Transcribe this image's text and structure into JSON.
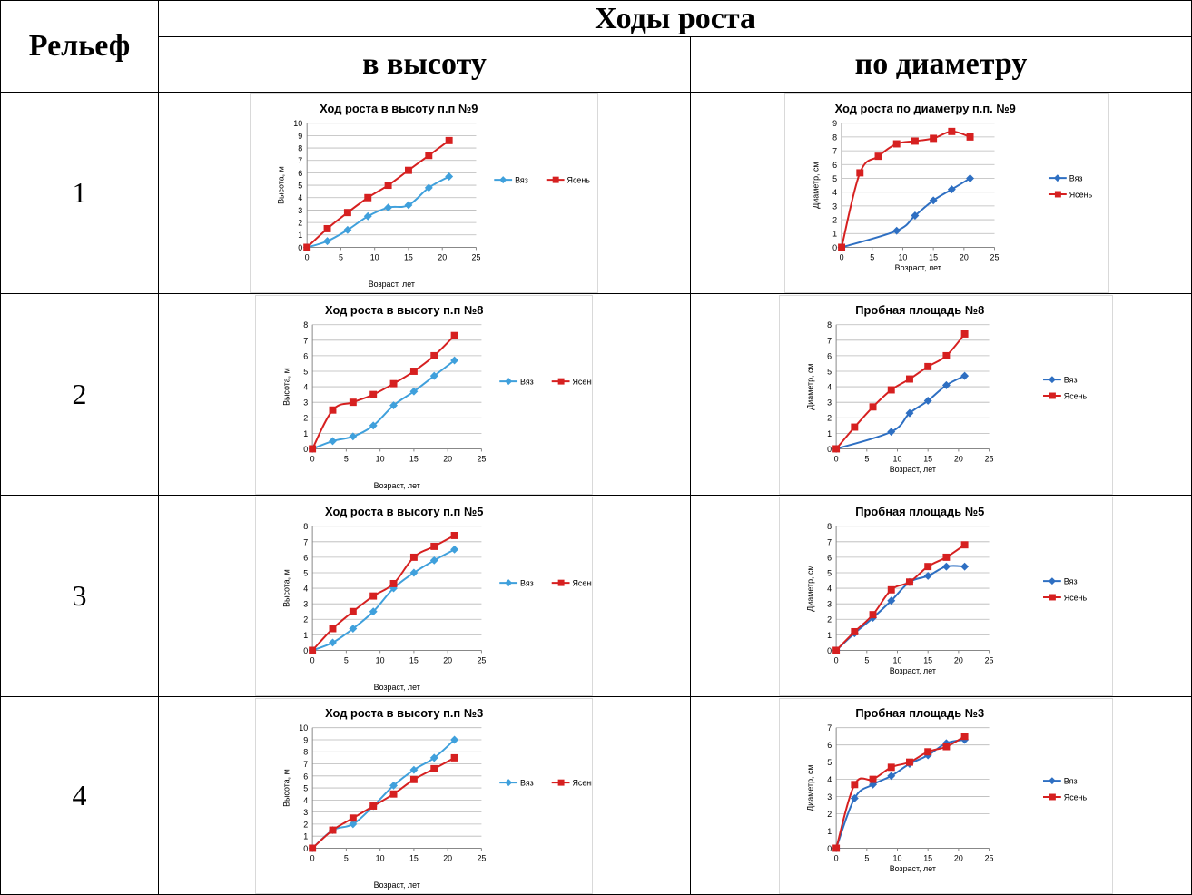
{
  "table": {
    "col1_header": "Рельеф",
    "group_header": "Ходы роста",
    "sub_height": "в высоту",
    "sub_diameter": "по диаметру",
    "rows": [
      "1",
      "2",
      "3",
      "4"
    ]
  },
  "colors": {
    "vyaz": "#2E6FC2",
    "vyaz_light": "#3FA0DC",
    "yasen": "#D62020"
  },
  "chart_data": [
    {
      "type": "line",
      "title": "Ход роста в высоту п.п №9",
      "xlabel": "Возраст, лет",
      "ylabel": "Высота, м",
      "xlim": [
        0,
        25
      ],
      "xticks": [
        0,
        5,
        10,
        15,
        20,
        25
      ],
      "ylim": [
        0,
        10
      ],
      "yticks": [
        0,
        1,
        2,
        3,
        4,
        5,
        6,
        7,
        8,
        9,
        10
      ],
      "grid": true,
      "legend": "right",
      "series": [
        {
          "name": "Вяз",
          "marker": "diamond",
          "x": [
            0,
            3,
            6,
            9,
            12,
            15,
            18,
            21
          ],
          "y": [
            0,
            0.5,
            1.4,
            2.5,
            3.2,
            3.4,
            4.8,
            5.7
          ]
        },
        {
          "name": "Ясень",
          "marker": "square",
          "x": [
            0,
            3,
            6,
            9,
            12,
            15,
            18,
            21
          ],
          "y": [
            0,
            1.5,
            2.8,
            4.0,
            5.0,
            6.2,
            7.4,
            8.6
          ]
        }
      ]
    },
    {
      "type": "line",
      "title": "Ход роста по диаметру п.п. №9",
      "xlabel": "Возраст, лет",
      "ylabel": "Диаметр, см",
      "xlim": [
        0,
        25
      ],
      "xticks": [
        0,
        5,
        10,
        15,
        20,
        25
      ],
      "ylim": [
        0,
        9
      ],
      "yticks": [
        0,
        1,
        2,
        3,
        4,
        5,
        6,
        7,
        8,
        9
      ],
      "grid": true,
      "legend": "right",
      "series": [
        {
          "name": "Вяз",
          "marker": "diamond",
          "x": [
            0,
            9,
            12,
            15,
            18,
            21
          ],
          "y": [
            0,
            1.2,
            2.3,
            3.4,
            4.2,
            5.0
          ]
        },
        {
          "name": "Ясень",
          "marker": "square",
          "x": [
            0,
            3,
            6,
            9,
            12,
            15,
            18,
            21
          ],
          "y": [
            0,
            5.4,
            6.6,
            7.5,
            7.7,
            7.9,
            8.4,
            8.0
          ]
        }
      ]
    },
    {
      "type": "line",
      "title": "Ход роста в высоту п.п №8",
      "xlabel": "Возраст, лет",
      "ylabel": "Высота, м",
      "xlim": [
        0,
        25
      ],
      "xticks": [
        0,
        5,
        10,
        15,
        20,
        25
      ],
      "ylim": [
        0,
        8
      ],
      "yticks": [
        0,
        1,
        2,
        3,
        4,
        5,
        6,
        7,
        8
      ],
      "grid": true,
      "legend": "right",
      "series": [
        {
          "name": "Вяз",
          "marker": "diamond",
          "x": [
            0,
            3,
            6,
            9,
            12,
            15,
            18,
            21
          ],
          "y": [
            0,
            0.5,
            0.8,
            1.5,
            2.8,
            3.7,
            4.7,
            5.7
          ]
        },
        {
          "name": "Ясень",
          "marker": "square",
          "x": [
            0,
            3,
            6,
            9,
            12,
            15,
            18,
            21
          ],
          "y": [
            0,
            2.5,
            3.0,
            3.5,
            4.2,
            5.0,
            6.0,
            7.3
          ]
        }
      ]
    },
    {
      "type": "line",
      "title": "Пробная площадь №8",
      "xlabel": "Возраст, лет",
      "ylabel": "Диаметр, см",
      "xlim": [
        0,
        25
      ],
      "xticks": [
        0,
        5,
        10,
        15,
        20,
        25
      ],
      "ylim": [
        0,
        8
      ],
      "yticks": [
        0,
        1,
        2,
        3,
        4,
        5,
        6,
        7,
        8
      ],
      "grid": true,
      "legend": "right",
      "series": [
        {
          "name": "Вяз",
          "marker": "diamond",
          "x": [
            0,
            9,
            12,
            15,
            18,
            21
          ],
          "y": [
            0,
            1.1,
            2.3,
            3.1,
            4.1,
            4.7
          ]
        },
        {
          "name": "Ясень",
          "marker": "square",
          "x": [
            0,
            3,
            6,
            9,
            12,
            15,
            18,
            21
          ],
          "y": [
            0,
            1.4,
            2.7,
            3.8,
            4.5,
            5.3,
            6.0,
            7.4
          ]
        }
      ]
    },
    {
      "type": "line",
      "title": "Ход роста в высоту п.п №5",
      "xlabel": "Возраст, лет",
      "ylabel": "Высота, м",
      "xlim": [
        0,
        25
      ],
      "xticks": [
        0,
        5,
        10,
        15,
        20,
        25
      ],
      "ylim": [
        0,
        8
      ],
      "yticks": [
        0,
        1,
        2,
        3,
        4,
        5,
        6,
        7,
        8
      ],
      "grid": true,
      "legend": "right",
      "series": [
        {
          "name": "Вяз",
          "marker": "diamond",
          "x": [
            0,
            3,
            6,
            9,
            12,
            15,
            18,
            21
          ],
          "y": [
            0,
            0.5,
            1.4,
            2.5,
            4.0,
            5.0,
            5.8,
            6.5
          ]
        },
        {
          "name": "Ясень",
          "marker": "square",
          "x": [
            0,
            3,
            6,
            9,
            12,
            15,
            18,
            21
          ],
          "y": [
            0,
            1.4,
            2.5,
            3.5,
            4.3,
            6.0,
            6.7,
            7.4
          ]
        }
      ]
    },
    {
      "type": "line",
      "title": "Пробная площадь №5",
      "xlabel": "Возраст, лет",
      "ylabel": "Диаметр, см",
      "xlim": [
        0,
        25
      ],
      "xticks": [
        0,
        5,
        10,
        15,
        20,
        25
      ],
      "ylim": [
        0,
        8
      ],
      "yticks": [
        0,
        1,
        2,
        3,
        4,
        5,
        6,
        7,
        8
      ],
      "grid": true,
      "legend": "right",
      "series": [
        {
          "name": "Вяз",
          "marker": "diamond",
          "x": [
            0,
            3,
            6,
            9,
            12,
            15,
            18,
            21
          ],
          "y": [
            0,
            1.1,
            2.1,
            3.2,
            4.4,
            4.8,
            5.4,
            5.4
          ]
        },
        {
          "name": "Ясень",
          "marker": "square",
          "x": [
            0,
            3,
            6,
            9,
            12,
            15,
            18,
            21
          ],
          "y": [
            0,
            1.2,
            2.3,
            3.9,
            4.4,
            5.4,
            6.0,
            6.8
          ]
        }
      ]
    },
    {
      "type": "line",
      "title": "Ход роста в высоту п.п №3",
      "xlabel": "Возраст, лет",
      "ylabel": "Высота, м",
      "xlim": [
        0,
        25
      ],
      "xticks": [
        0,
        5,
        10,
        15,
        20,
        25
      ],
      "ylim": [
        0,
        10
      ],
      "yticks": [
        0,
        1,
        2,
        3,
        4,
        5,
        6,
        7,
        8,
        9,
        10
      ],
      "grid": true,
      "legend": "right",
      "series": [
        {
          "name": "Вяз",
          "marker": "diamond",
          "x": [
            0,
            3,
            6,
            9,
            12,
            15,
            18,
            21
          ],
          "y": [
            0,
            1.5,
            2.0,
            3.5,
            5.2,
            6.5,
            7.5,
            9.0
          ]
        },
        {
          "name": "Ясень",
          "marker": "square",
          "x": [
            0,
            3,
            6,
            9,
            12,
            15,
            18,
            21
          ],
          "y": [
            0,
            1.5,
            2.5,
            3.5,
            4.5,
            5.7,
            6.6,
            7.5
          ]
        }
      ]
    },
    {
      "type": "line",
      "title": "Пробная площадь №3",
      "xlabel": "Возраст, лет",
      "ylabel": "Диаметр, см",
      "xlim": [
        0,
        25
      ],
      "xticks": [
        0,
        5,
        10,
        15,
        20,
        25
      ],
      "ylim": [
        0,
        7
      ],
      "yticks": [
        0,
        1,
        2,
        3,
        4,
        5,
        6,
        7
      ],
      "grid": true,
      "legend": "right",
      "series": [
        {
          "name": "Вяз",
          "marker": "diamond",
          "x": [
            0,
            3,
            6,
            9,
            12,
            15,
            18,
            21
          ],
          "y": [
            0,
            2.9,
            3.7,
            4.2,
            4.9,
            5.4,
            6.1,
            6.3
          ]
        },
        {
          "name": "Ясень",
          "marker": "square",
          "x": [
            0,
            3,
            6,
            9,
            12,
            15,
            18,
            21
          ],
          "y": [
            0,
            3.7,
            4.0,
            4.7,
            5.0,
            5.6,
            5.9,
            6.5
          ]
        }
      ]
    }
  ]
}
